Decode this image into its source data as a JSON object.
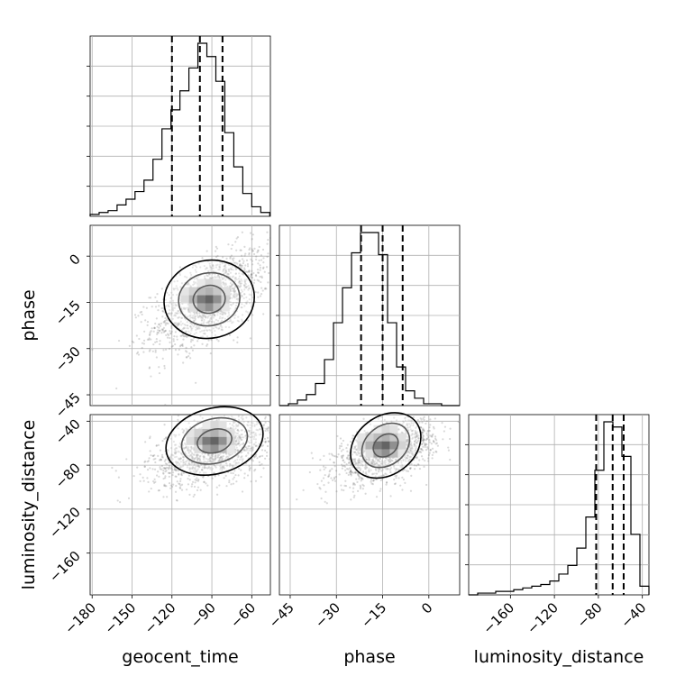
{
  "chart_data": {
    "type": "corner",
    "parameters": [
      "geocent_time",
      "phase",
      "luminosity_distance"
    ],
    "axis_labels": {
      "x": [
        "geocent_time",
        "phase",
        "luminosity_distance"
      ],
      "y": [
        "phase",
        "luminosity_distance"
      ]
    },
    "ranges": {
      "geocent_time": [
        -181.5,
        -46
      ],
      "phase": [
        -48.5,
        10
      ],
      "luminosity_distance": [
        -198,
        -34
      ]
    },
    "ticks": {
      "geocent_time": [
        "−180",
        "−150",
        "−120",
        "−90",
        "−60"
      ],
      "phase": [
        "−45",
        "−30",
        "−15",
        "0"
      ],
      "luminosity_distance": [
        "−160",
        "−120",
        "−80",
        "−40"
      ]
    },
    "tick_values": {
      "geocent_time": [
        -180,
        -150,
        -120,
        -90,
        -60
      ],
      "phase": [
        -45,
        -30,
        -15,
        0
      ],
      "luminosity_distance": [
        -160,
        -120,
        -80,
        -40
      ]
    },
    "quantiles": {
      "geocent_time": [
        -120,
        -99,
        -82
      ],
      "phase": [
        -22,
        -15,
        -8.5
      ],
      "luminosity_distance": [
        -82,
        -67,
        -57
      ]
    },
    "histograms": {
      "geocent_time": {
        "edges": [
          -181.5,
          -174.75,
          -168,
          -161.25,
          -154.5,
          -147.75,
          -141,
          -134.25,
          -127.5,
          -120.75,
          -114,
          -107.25,
          -100.5,
          -93.75,
          -87,
          -80.25,
          -73.5,
          -66.75,
          -60,
          -53.25,
          -46.5
        ],
        "counts": [
          0.01,
          0.02,
          0.03,
          0.06,
          0.09,
          0.13,
          0.19,
          0.3,
          0.46,
          0.56,
          0.66,
          0.78,
          0.91,
          0.84,
          0.71,
          0.44,
          0.26,
          0.12,
          0.05,
          0.02
        ]
      },
      "phase": {
        "edges": [
          -48.5,
          -45.575,
          -42.65,
          -39.725,
          -36.8,
          -33.875,
          -30.95,
          -28.025,
          -25.1,
          -22.175,
          -19.25,
          -16.325,
          -13.4,
          -10.475,
          -7.55,
          -4.625,
          -1.7,
          1.225,
          4.15,
          7.075,
          10
        ],
        "counts": [
          0,
          0.01,
          0.03,
          0.06,
          0.12,
          0.25,
          0.45,
          0.64,
          0.83,
          0.94,
          0.94,
          0.82,
          0.45,
          0.21,
          0.08,
          0.04,
          0.01,
          0.01,
          0,
          0
        ]
      },
      "luminosity_distance": {
        "edges": [
          -198,
          -189.8,
          -181.6,
          -173.4,
          -165.2,
          -157,
          -148.8,
          -140.6,
          -132.4,
          -124.2,
          -116,
          -107.8,
          -99.6,
          -91.4,
          -83.2,
          -75,
          -66.8,
          -58.6,
          -50.4,
          -42.2,
          -34
        ],
        "counts": [
          0,
          0.01,
          0.01,
          0.02,
          0.02,
          0.03,
          0.04,
          0.05,
          0.06,
          0.08,
          0.12,
          0.17,
          0.27,
          0.45,
          0.72,
          1,
          0.97,
          0.8,
          0.35,
          0.05
        ]
      }
    },
    "pairs": [
      {
        "x": "geocent_time",
        "y": "phase",
        "mean": [
          -91,
          -14
        ],
        "sd": [
          22,
          8
        ],
        "rho": 0.6,
        "density_peak": [
          -92,
          -14
        ],
        "contour_levels": 3
      },
      {
        "x": "geocent_time",
        "y": "luminosity_distance",
        "mean": [
          -88,
          -66
        ],
        "sd": [
          24,
          16
        ],
        "rho": 0.45,
        "density_peak": [
          -88,
          -58
        ],
        "contour_levels": 3
      },
      {
        "x": "phase",
        "y": "luminosity_distance",
        "mean": [
          -14,
          -68
        ],
        "sd": [
          8,
          14
        ],
        "rho": 0.5,
        "density_peak": [
          -14,
          -62
        ],
        "contour_levels": 3
      }
    ],
    "grid": true,
    "legend": "none"
  }
}
